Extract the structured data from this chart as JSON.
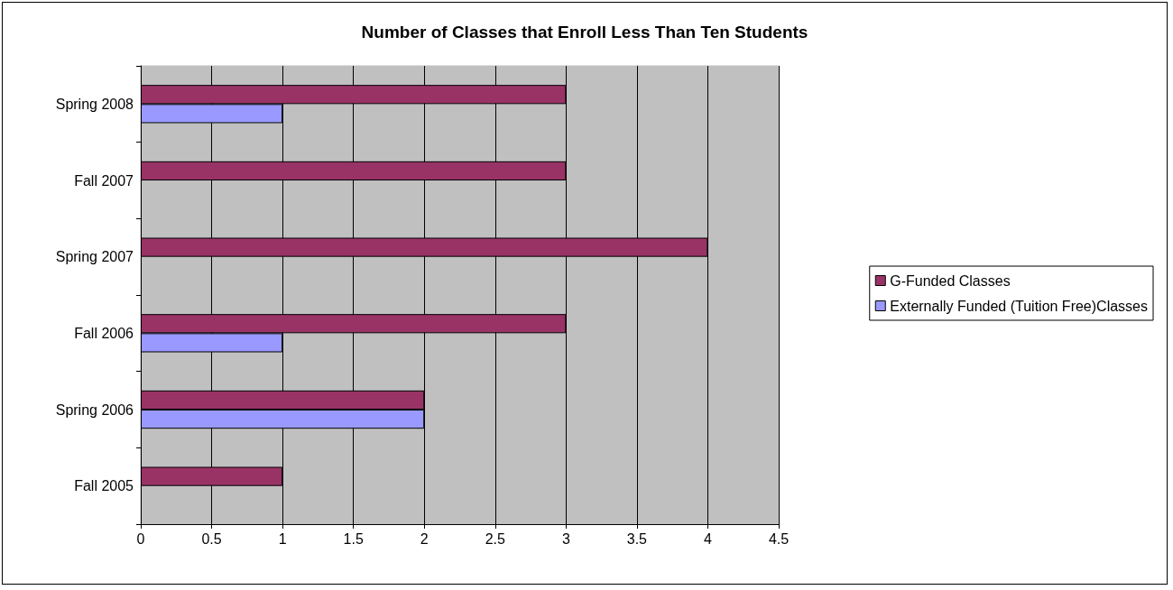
{
  "chart_data": {
    "type": "bar",
    "orientation": "horizontal",
    "title": "Number of Classes that Enroll Less Than Ten Students",
    "categories": [
      "Spring 2008",
      "Fall 2007",
      "Spring 2007",
      "Fall 2006",
      "Spring 2006",
      "Fall 2005"
    ],
    "series": [
      {
        "name": "G-Funded Classes",
        "color": "#993366",
        "values": [
          3,
          3,
          4,
          3,
          2,
          1
        ]
      },
      {
        "name": "Externally Funded (Tuition Free)Classes",
        "color": "#9999ff",
        "values": [
          1,
          null,
          null,
          1,
          2,
          null
        ]
      }
    ],
    "xlim": [
      0,
      4.5
    ],
    "xticks": [
      0,
      0.5,
      1,
      1.5,
      2,
      2.5,
      3,
      3.5,
      4,
      4.5
    ],
    "grid": "x",
    "legend": "right"
  }
}
